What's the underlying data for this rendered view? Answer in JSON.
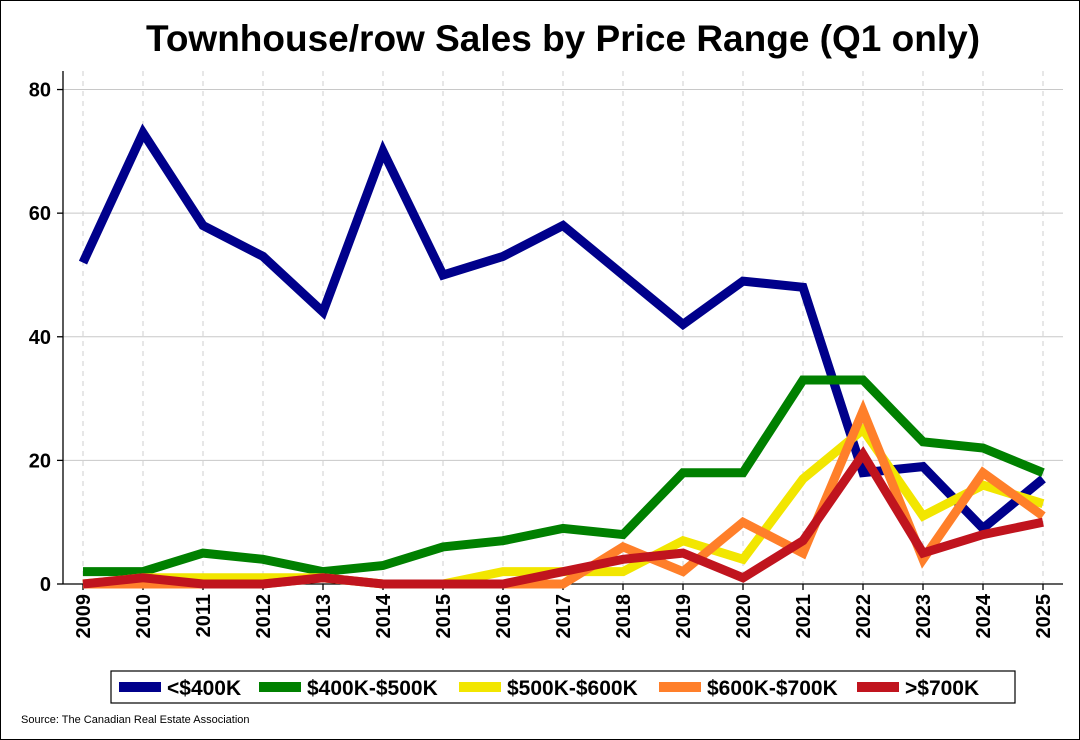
{
  "chart_data": {
    "type": "line",
    "title": "Townhouse/row Sales by Price Range (Q1 only)",
    "xlabel": "",
    "ylabel": "",
    "x": [
      "2009",
      "2010",
      "2011",
      "2012",
      "2013",
      "2014",
      "2015",
      "2016",
      "2017",
      "2018",
      "2019",
      "2020",
      "2021",
      "2022",
      "2023",
      "2024",
      "2025"
    ],
    "ylim": [
      0,
      83
    ],
    "yticks": [
      0,
      20,
      40,
      60,
      80
    ],
    "grid": {
      "horizontal": "solid",
      "vertical": "dashed"
    },
    "legend_position": "bottom",
    "series": [
      {
        "name": "<$400K",
        "color": "#00008B",
        "values": [
          52,
          73,
          58,
          53,
          44,
          70,
          50,
          53,
          58,
          50,
          42,
          49,
          48,
          18,
          19,
          9,
          17
        ]
      },
      {
        "name": "$400K-$500K",
        "color": "#008000",
        "values": [
          2,
          2,
          5,
          4,
          2,
          3,
          6,
          7,
          9,
          8,
          18,
          18,
          33,
          33,
          23,
          22,
          18
        ]
      },
      {
        "name": "$500K-$600K",
        "color": "#F2E600",
        "values": [
          0,
          1,
          1,
          1,
          1,
          0,
          0,
          2,
          2,
          2,
          7,
          4,
          17,
          25,
          11,
          16,
          13
        ]
      },
      {
        "name": "$600K-$700K",
        "color": "#FF7F2A",
        "values": [
          0,
          0,
          0,
          0,
          1,
          0,
          0,
          0,
          0,
          6,
          2,
          10,
          5,
          28,
          4,
          18,
          11
        ]
      },
      {
        "name": ">$700K",
        "color": "#C0141E",
        "values": [
          0,
          1,
          0,
          0,
          1,
          0,
          0,
          0,
          2,
          4,
          5,
          1,
          7,
          21,
          5,
          8,
          10
        ]
      }
    ]
  },
  "source": "Source: The Canadian Real Estate Association"
}
